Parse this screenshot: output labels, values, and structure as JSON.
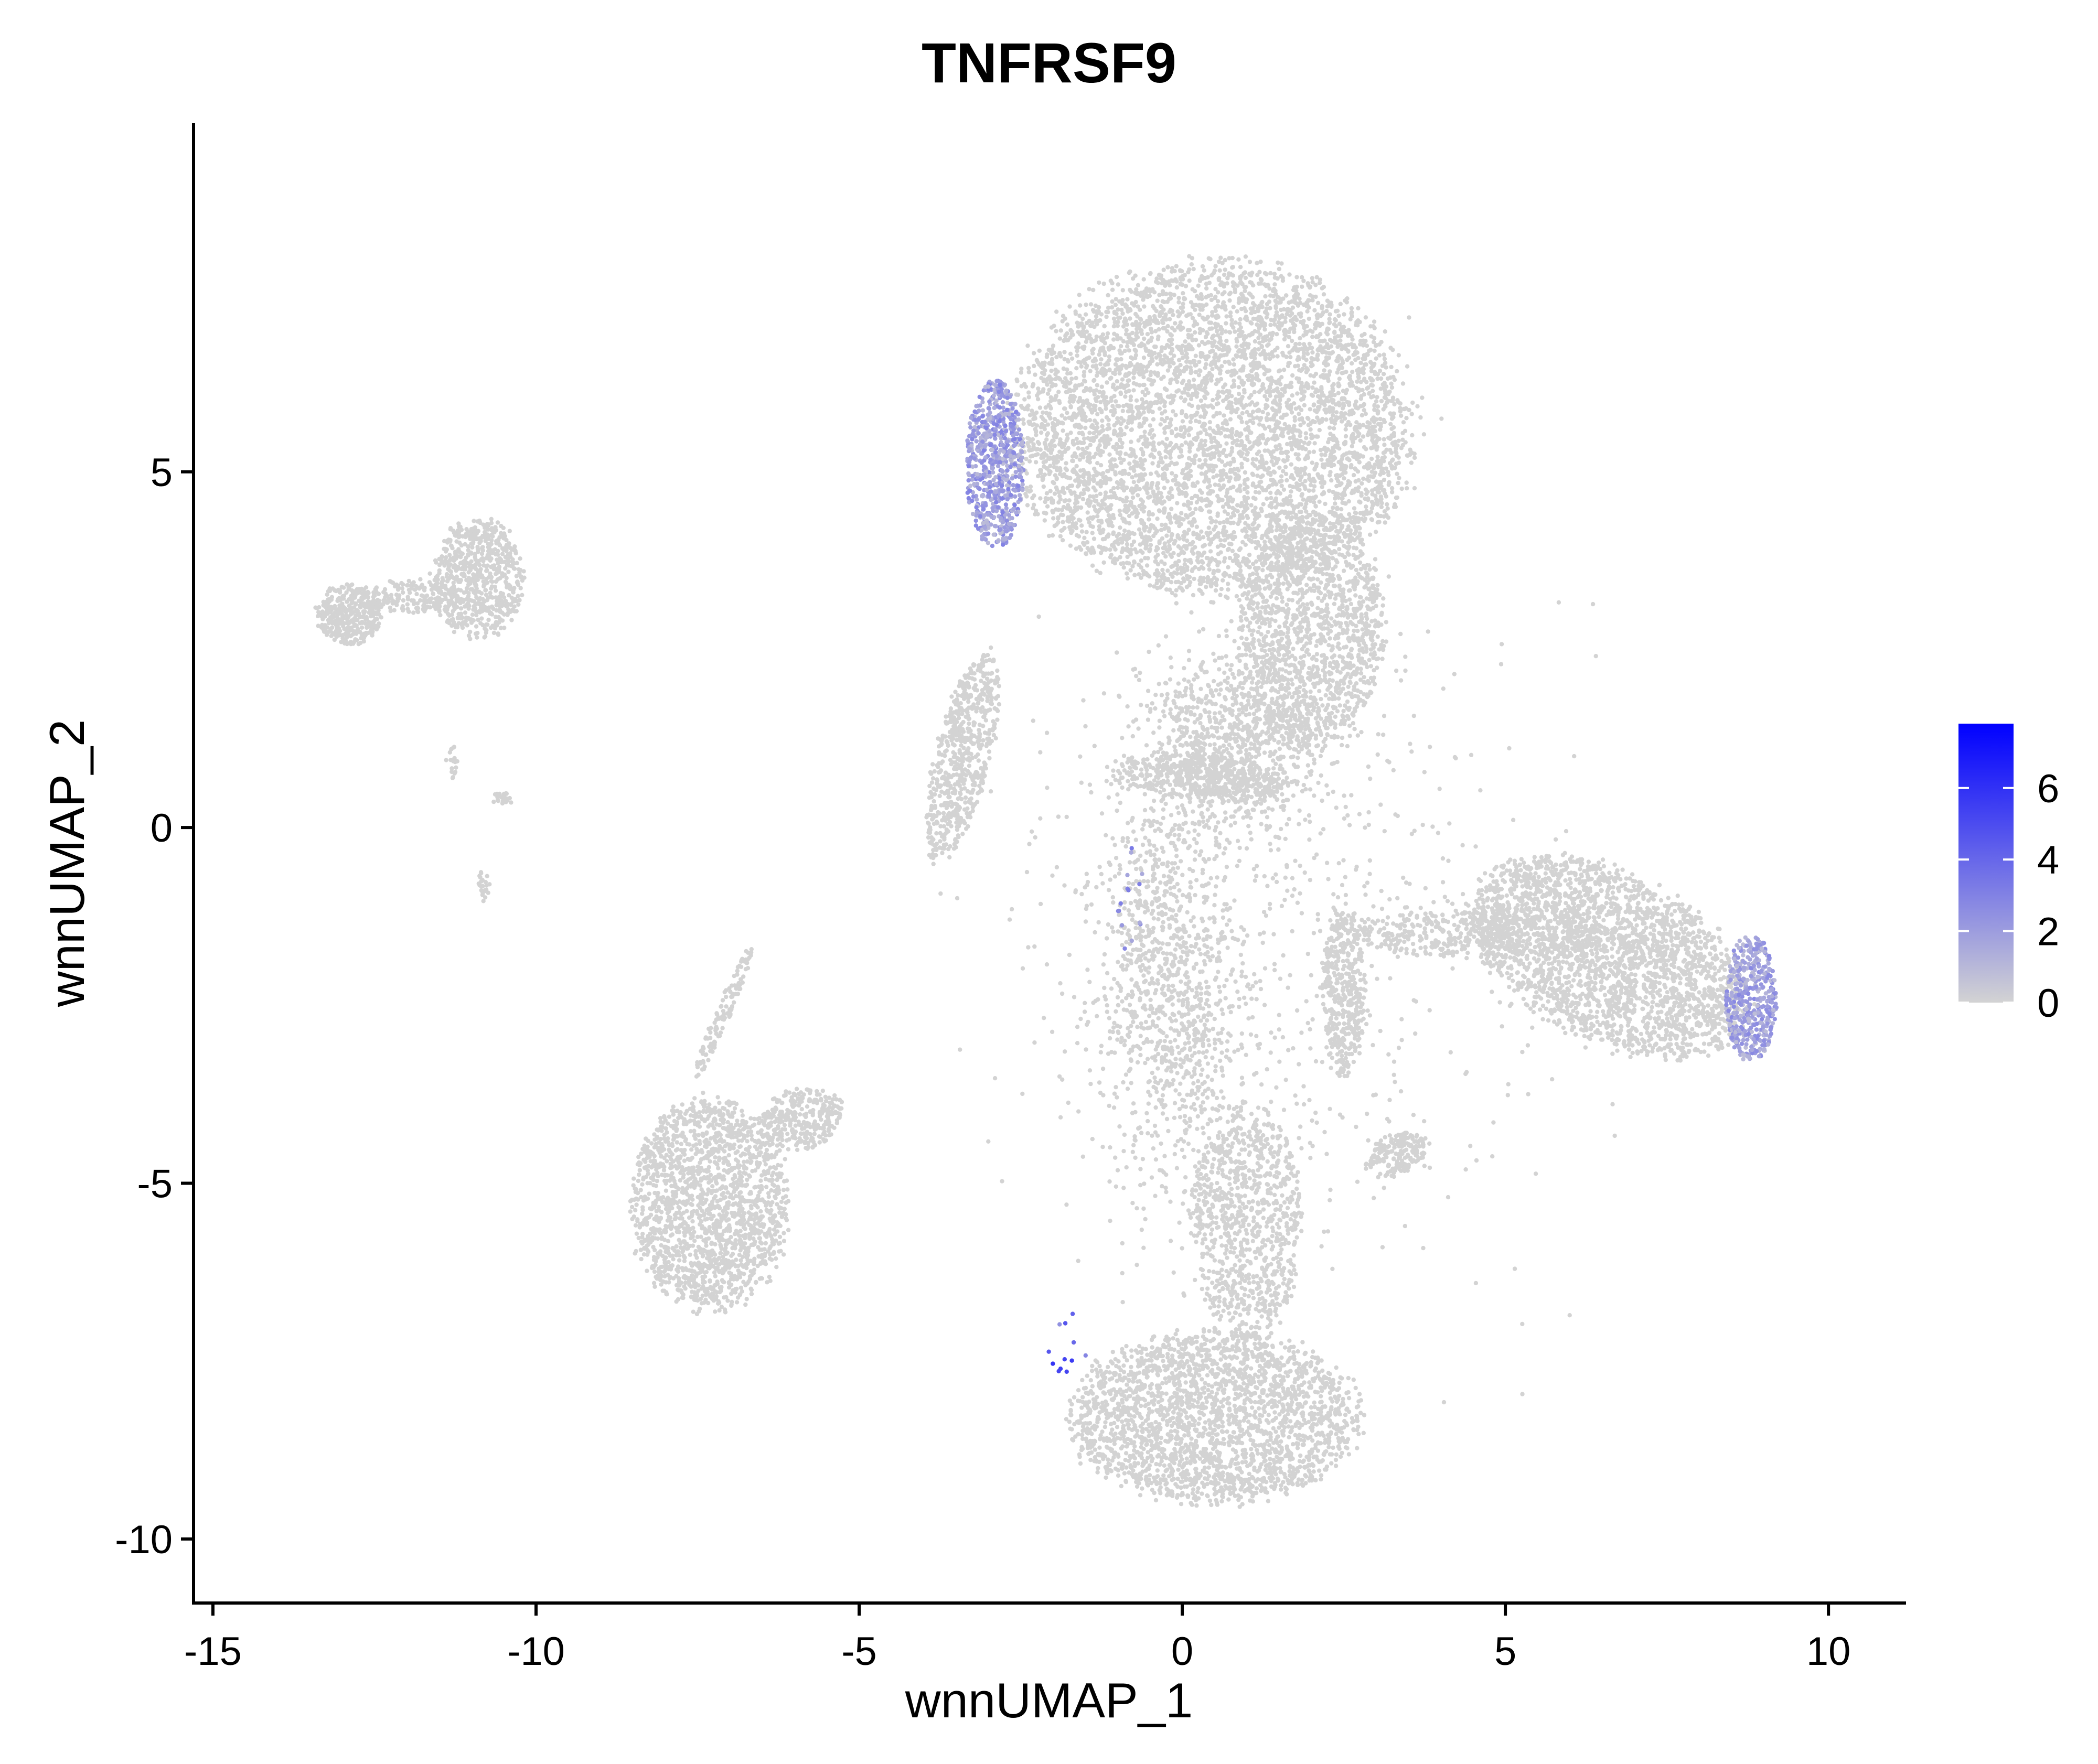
{
  "chart_data": {
    "type": "scatter",
    "title": "TNFRSF9",
    "xlabel": "wnnUMAP_1",
    "ylabel": "wnnUMAP_2",
    "xlim": [
      -15.3,
      11.2
    ],
    "ylim": [
      -10.9,
      9.9
    ],
    "x_ticks": [
      -15,
      -10,
      -5,
      0,
      5,
      10
    ],
    "y_ticks": [
      -10,
      -5,
      0,
      5
    ],
    "x_tick_labels": [
      "-15",
      "-10",
      "-5",
      "0",
      "5",
      "10"
    ],
    "y_tick_labels": [
      "-10",
      "-5",
      "0",
      "5"
    ],
    "grid": false,
    "legend": {
      "type": "colorbar",
      "placement": "right",
      "range": [
        0,
        7.8
      ],
      "ticks": [
        0,
        2,
        4,
        6
      ],
      "tick_labels": [
        "0",
        "2",
        "4",
        "6"
      ],
      "low_color": "#D3D3D3",
      "high_color": "#0000FF"
    },
    "point_color_zero": "#D3D3D3",
    "clusters": [
      {
        "name": "top-main",
        "cx": 0.5,
        "cy": 5.6,
        "sx": 3.3,
        "sy": 2.5,
        "angle": 0,
        "n": 5200,
        "shape": "disk"
      },
      {
        "name": "top-main-lower-right",
        "cx": 2.0,
        "cy": 2.8,
        "sx": 1.2,
        "sy": 1.8,
        "angle": 0,
        "n": 1400,
        "shape": "disk"
      },
      {
        "name": "top-left-arm",
        "cx": -3.4,
        "cy": 1.0,
        "sx": 0.45,
        "sy": 1.6,
        "angle": -15,
        "n": 650,
        "shape": "disk"
      },
      {
        "name": "central-blob",
        "cx": 0.8,
        "cy": 1.2,
        "sx": 1.4,
        "sy": 1.3,
        "angle": 0,
        "n": 900,
        "shape": "gauss"
      },
      {
        "name": "central-bridge",
        "cx": 0.3,
        "cy": 0.7,
        "sx": 1.5,
        "sy": 0.35,
        "angle": -5,
        "n": 450,
        "shape": "disk"
      },
      {
        "name": "right-arm-body",
        "cx": 6.6,
        "cy": -1.8,
        "sx": 2.4,
        "sy": 1.3,
        "angle": -22,
        "n": 2600,
        "shape": "disk"
      },
      {
        "name": "right-arm-stem",
        "cx": 4.6,
        "cy": -1.5,
        "sx": 2.2,
        "sy": 0.35,
        "angle": 0,
        "n": 500,
        "shape": "disk"
      },
      {
        "name": "right-side-column",
        "cx": 2.5,
        "cy": -2.3,
        "sx": 0.35,
        "sy": 1.3,
        "angle": 0,
        "n": 420,
        "shape": "disk"
      },
      {
        "name": "bottom-cluster",
        "cx": 0.5,
        "cy": -8.3,
        "sx": 2.4,
        "sy": 1.3,
        "angle": 0,
        "n": 2400,
        "shape": "disk"
      },
      {
        "name": "bottom-stem",
        "cx": 1.0,
        "cy": -5.6,
        "sx": 0.9,
        "sy": 1.8,
        "angle": 0,
        "n": 900,
        "shape": "disk"
      },
      {
        "name": "center-column",
        "cx": -0.2,
        "cy": -2.2,
        "sx": 1.1,
        "sy": 2.8,
        "angle": 5,
        "n": 1100,
        "shape": "gauss"
      },
      {
        "name": "mid-right-small",
        "cx": 3.3,
        "cy": -4.6,
        "sx": 0.55,
        "sy": 0.3,
        "angle": 20,
        "n": 180,
        "shape": "disk"
      },
      {
        "name": "left-lower-cluster",
        "cx": -7.3,
        "cy": -5.3,
        "sx": 1.3,
        "sy": 1.6,
        "angle": 0,
        "n": 1800,
        "shape": "disk"
      },
      {
        "name": "left-lower-top-right",
        "cx": -5.9,
        "cy": -4.1,
        "sx": 0.7,
        "sy": 0.45,
        "angle": 10,
        "n": 300,
        "shape": "disk"
      },
      {
        "name": "left-lower-spike",
        "cx": -7.1,
        "cy": -2.6,
        "sx": 0.12,
        "sy": 1.1,
        "angle": -25,
        "n": 120,
        "shape": "disk"
      },
      {
        "name": "top-left-cluster-right",
        "cx": -10.9,
        "cy": 3.5,
        "sx": 0.75,
        "sy": 0.9,
        "angle": 0,
        "n": 700,
        "shape": "disk"
      },
      {
        "name": "top-left-cluster-left",
        "cx": -12.9,
        "cy": 3.0,
        "sx": 0.55,
        "sy": 0.45,
        "angle": 0,
        "n": 380,
        "shape": "disk"
      },
      {
        "name": "top-left-cluster-bridge",
        "cx": -11.9,
        "cy": 3.25,
        "sx": 0.8,
        "sy": 0.25,
        "angle": 0,
        "n": 180,
        "shape": "disk"
      },
      {
        "name": "top-left-small-1",
        "cx": -10.5,
        "cy": 0.4,
        "sx": 0.2,
        "sy": 0.1,
        "angle": 0,
        "n": 25,
        "shape": "disk"
      },
      {
        "name": "top-left-small-2",
        "cx": -10.8,
        "cy": -0.8,
        "sx": 0.1,
        "sy": 0.25,
        "angle": 0,
        "n": 25,
        "shape": "disk"
      },
      {
        "name": "top-left-small-3",
        "cx": -11.3,
        "cy": 0.9,
        "sx": 0.1,
        "sy": 0.3,
        "angle": 0,
        "n": 18,
        "shape": "disk"
      },
      {
        "name": "scatter-haze",
        "cx": 1.5,
        "cy": -1.5,
        "sx": 4.0,
        "sy": 4.5,
        "angle": 0,
        "n": 700,
        "shape": "gauss"
      }
    ],
    "expressing_regions": [
      {
        "name": "top-main-left-edge",
        "cx": -2.9,
        "cy": 5.1,
        "sx": 0.45,
        "sy": 1.2,
        "n": 700,
        "expression": [
          0.8,
          3.0
        ]
      },
      {
        "name": "right-arm-tip",
        "cx": 8.8,
        "cy": -2.4,
        "sx": 0.4,
        "sy": 0.9,
        "n": 450,
        "expression": [
          0.8,
          2.8
        ]
      },
      {
        "name": "bottom-left-spots",
        "cx": -1.8,
        "cy": -7.2,
        "sx": 0.35,
        "sy": 0.5,
        "n": 12,
        "expression": [
          2.0,
          6.0
        ]
      },
      {
        "name": "center-column-spots",
        "cx": -0.8,
        "cy": -1.0,
        "sx": 0.2,
        "sy": 0.8,
        "n": 15,
        "expression": [
          1.5,
          3.5
        ]
      }
    ]
  }
}
